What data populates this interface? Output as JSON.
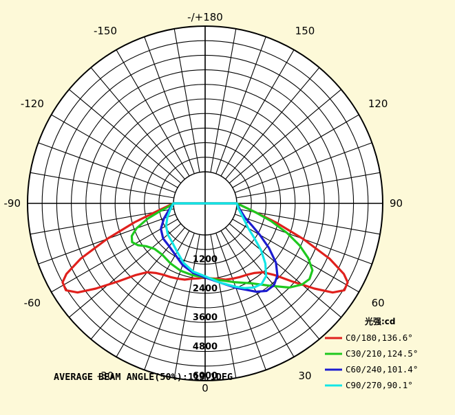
{
  "chart_data": {
    "type": "polar",
    "angle_labels": [
      "-/+180",
      "150",
      "120",
      "90",
      "60",
      "30",
      "0",
      "-30",
      "-60",
      "-90",
      "-120",
      "-150"
    ],
    "angle_label_values": [
      180,
      150,
      120,
      90,
      60,
      30,
      0,
      -30,
      -60,
      -90,
      -120,
      -150
    ],
    "radial_tick_labels": [
      "1200",
      "2400",
      "3600",
      "4800",
      "6000"
    ],
    "radial_ticks": [
      1200,
      2400,
      3600,
      4800,
      6000
    ],
    "rmax": 6000,
    "legend_title": "光强:cd",
    "legend_placement": "bottom-right",
    "series": [
      {
        "name": "C0/180,136.6°",
        "color": "#e0201c",
        "points": [
          [
            -90,
            0
          ],
          [
            -85,
            300
          ],
          [
            -80,
            800
          ],
          [
            -75,
            1700
          ],
          [
            -70,
            3000
          ],
          [
            -66,
            4300
          ],
          [
            -63,
            5100
          ],
          [
            -61,
            5400
          ],
          [
            -58,
            5450
          ],
          [
            -55,
            5100
          ],
          [
            -52,
            4400
          ],
          [
            -48,
            3500
          ],
          [
            -44,
            2800
          ],
          [
            -40,
            2400
          ],
          [
            -35,
            2200
          ],
          [
            -30,
            2100
          ],
          [
            -25,
            2050
          ],
          [
            -20,
            2000
          ],
          [
            -15,
            1950
          ],
          [
            -10,
            1850
          ],
          [
            -5,
            1800
          ],
          [
            0,
            1750
          ],
          [
            5,
            1800
          ],
          [
            10,
            1850
          ],
          [
            15,
            1950
          ],
          [
            20,
            2000
          ],
          [
            25,
            2050
          ],
          [
            30,
            2100
          ],
          [
            35,
            2200
          ],
          [
            40,
            2400
          ],
          [
            44,
            2800
          ],
          [
            48,
            3500
          ],
          [
            52,
            4400
          ],
          [
            55,
            5100
          ],
          [
            58,
            5450
          ],
          [
            61,
            5400
          ],
          [
            63,
            5100
          ],
          [
            66,
            4300
          ],
          [
            70,
            3000
          ],
          [
            75,
            1700
          ],
          [
            80,
            800
          ],
          [
            85,
            300
          ],
          [
            90,
            0
          ]
        ]
      },
      {
        "name": "C30/210,124.5°",
        "color": "#1ec81e",
        "points": [
          [
            -90,
            0
          ],
          [
            -85,
            200
          ],
          [
            -80,
            600
          ],
          [
            -75,
            1150
          ],
          [
            -70,
            1700
          ],
          [
            -66,
            2000
          ],
          [
            -62,
            2100
          ],
          [
            -58,
            1950
          ],
          [
            -54,
            1700
          ],
          [
            -48,
            1500
          ],
          [
            -40,
            1450
          ],
          [
            -30,
            1550
          ],
          [
            -20,
            1650
          ],
          [
            -10,
            1700
          ],
          [
            0,
            1750
          ],
          [
            10,
            1900
          ],
          [
            20,
            2150
          ],
          [
            30,
            2500
          ],
          [
            38,
            3000
          ],
          [
            45,
            3600
          ],
          [
            50,
            3900
          ],
          [
            54,
            4000
          ],
          [
            58,
            3900
          ],
          [
            62,
            3500
          ],
          [
            66,
            2950
          ],
          [
            70,
            2300
          ],
          [
            75,
            1500
          ],
          [
            80,
            800
          ],
          [
            85,
            300
          ],
          [
            90,
            0
          ]
        ]
      },
      {
        "name": "C60/240,101.4°",
        "color": "#1c1cd0",
        "points": [
          [
            -90,
            0
          ],
          [
            -80,
            200
          ],
          [
            -70,
            500
          ],
          [
            -60,
            800
          ],
          [
            -50,
            950
          ],
          [
            -40,
            1000
          ],
          [
            -30,
            1150
          ],
          [
            -20,
            1400
          ],
          [
            -10,
            1600
          ],
          [
            0,
            1750
          ],
          [
            10,
            2000
          ],
          [
            20,
            2400
          ],
          [
            30,
            2900
          ],
          [
            35,
            3100
          ],
          [
            40,
            3100
          ],
          [
            45,
            2900
          ],
          [
            50,
            2500
          ],
          [
            55,
            1900
          ],
          [
            60,
            1300
          ],
          [
            65,
            800
          ],
          [
            70,
            450
          ],
          [
            80,
            150
          ],
          [
            90,
            0
          ]
        ]
      },
      {
        "name": "C90/270,90.1°",
        "color": "#12e6e6",
        "points": [
          [
            -90,
            0
          ],
          [
            -80,
            150
          ],
          [
            -70,
            350
          ],
          [
            -60,
            550
          ],
          [
            -50,
            700
          ],
          [
            -40,
            800
          ],
          [
            -30,
            1000
          ],
          [
            -20,
            1300
          ],
          [
            -10,
            1550
          ],
          [
            0,
            1700
          ],
          [
            10,
            2000
          ],
          [
            20,
            2350
          ],
          [
            25,
            2550
          ],
          [
            30,
            2700
          ],
          [
            35,
            2750
          ],
          [
            40,
            2600
          ],
          [
            45,
            2200
          ],
          [
            50,
            1700
          ],
          [
            55,
            1150
          ],
          [
            60,
            750
          ],
          [
            70,
            350
          ],
          [
            80,
            100
          ],
          [
            90,
            0
          ]
        ]
      }
    ]
  },
  "average_beam_angle": "AVERAGE BEAM ANGLE(50%):113.1DEG"
}
